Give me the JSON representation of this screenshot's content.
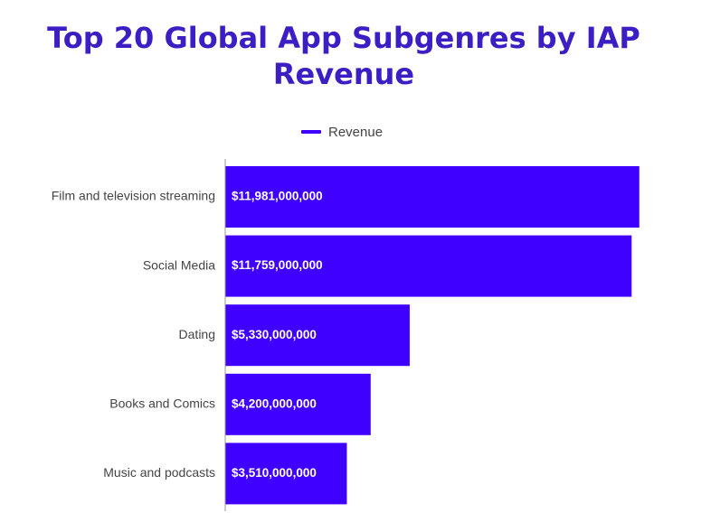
{
  "chart_data": {
    "type": "bar",
    "orientation": "horizontal",
    "title": "Top 20 Global App Subgenres by IAP Revenue",
    "categories": [
      "Film and television streaming",
      "Social Media",
      "Dating",
      "Books and Comics",
      "Music and podcasts"
    ],
    "series": [
      {
        "name": "Revenue",
        "values": [
          11981000000,
          11759000000,
          5330000000,
          4200000000,
          3510000000
        ],
        "data_labels": [
          "$11,981,000,000",
          "$11,759,000,000",
          "$5,330,000,000",
          "$4,200,000,000",
          "$3,510,000,000"
        ]
      }
    ],
    "xlabel": "",
    "ylabel": "",
    "xlim": [
      0,
      12000000000
    ],
    "grid": false,
    "legend_position": "top-center"
  },
  "colors": {
    "title": "#3d1ec4",
    "bar": "#3f00ff",
    "bar_label": "#ffffff",
    "category_label": "#444444",
    "axis": "#999999"
  }
}
